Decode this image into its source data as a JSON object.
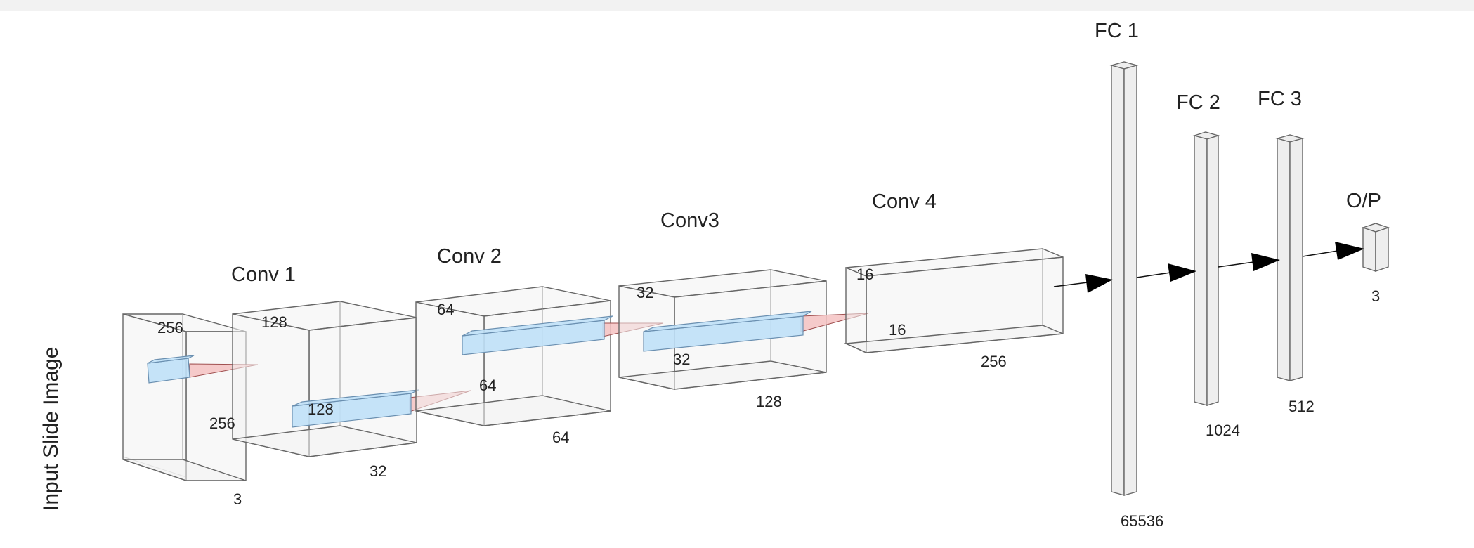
{
  "input_label": "Input Slide Image",
  "layers": {
    "input": {
      "dims": [
        "256",
        "256",
        "3"
      ]
    },
    "conv1": {
      "title": "Conv 1",
      "dims": [
        "128",
        "128",
        "32"
      ]
    },
    "conv2": {
      "title": "Conv 2",
      "dims": [
        "64",
        "64",
        "64"
      ]
    },
    "conv3": {
      "title": "Conv3",
      "dims": [
        "32",
        "32",
        "128"
      ]
    },
    "conv4": {
      "title": "Conv 4",
      "dims": [
        "16",
        "16",
        "256"
      ]
    },
    "fc1": {
      "title": "FC 1",
      "dims": [
        "65536"
      ]
    },
    "fc2": {
      "title": "FC 2",
      "dims": [
        "1024"
      ]
    },
    "fc3": {
      "title": "FC 3",
      "dims": [
        "512"
      ]
    },
    "op": {
      "title": "O/P",
      "dims": [
        "3"
      ]
    }
  },
  "colors": {
    "box_fill": "#f2f2f2",
    "box_edge": "#666666",
    "kernel_fill": "#bfe0f7",
    "cone_fill": "#f4c2c2",
    "arrow": "#000000"
  }
}
